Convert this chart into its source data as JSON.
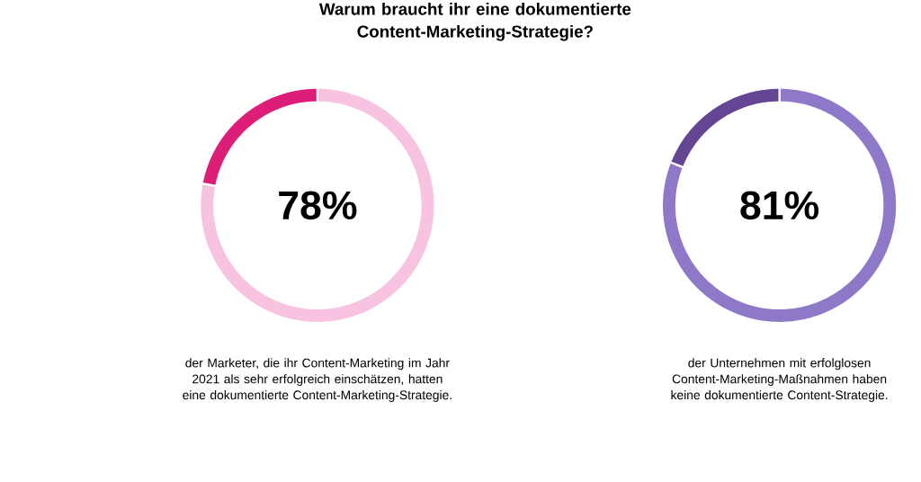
{
  "chart_data": [
    {
      "type": "donut",
      "title": "Warum braucht ihr eine dokumentierte Content-Marketing-Strategie?",
      "categories": [
        null,
        null
      ],
      "values": [
        78,
        22
      ],
      "colors": [
        "#f7c3e0",
        "#dc1e78"
      ],
      "value_labels": [
        "78%",
        null
      ],
      "annotations": [
        "der Marketer, die ihr Content-Marketing im Jahr 2021 als sehr erfolgreich einschätzen, hatten eine dokumentierte Content-Marketing-Strategie."
      ]
    },
    {
      "type": "donut",
      "categories": [
        null,
        null
      ],
      "values": [
        81,
        19
      ],
      "colors": [
        "#8e79c8",
        "#634593"
      ],
      "value_labels": [
        "81%",
        null
      ],
      "annotations": [
        "der Unternehmen mit erfolglosen Content-Marketing-Maßnahmen haben keine dokumentierte Content-Strategie."
      ]
    }
  ]
}
